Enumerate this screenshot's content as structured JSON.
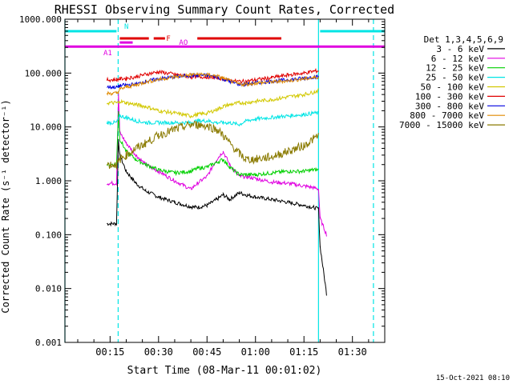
{
  "chart_data": {
    "type": "line",
    "title": "RHESSI Observing Summary Count Rates, Corrected",
    "xlabel": "Start Time (08-Mar-11 00:01:02)",
    "ylabel": "Corrected Count Rate (s⁻¹ detector⁻¹)",
    "y_scale": "log",
    "ylim": [
      0.001,
      1000
    ],
    "xlim_minutes": [
      1.03,
      100
    ],
    "x_tick_labels": [
      "00:15",
      "00:30",
      "00:45",
      "01:00",
      "01:15",
      "01:30"
    ],
    "x_tick_values_minutes": [
      15,
      30,
      45,
      60,
      75,
      90
    ],
    "y_tick_labels": [
      "0.001",
      "0.010",
      "0.100",
      "1.000",
      "10.000",
      "100.000",
      "1000.000"
    ],
    "y_tick_values": [
      0.001,
      0.01,
      0.1,
      1,
      10,
      100,
      1000
    ],
    "legend_title": "Det 1,3,4,5,6,9",
    "legend_position": "right",
    "timestamp": "15-Oct-2021 08:10",
    "flag_bars": [
      {
        "label": "N",
        "color": "#00e5e5",
        "level": 600,
        "segments": [
          [
            1.03,
            17
          ],
          [
            80,
            100
          ]
        ]
      },
      {
        "label": "F",
        "color": "#e00000",
        "level": 440,
        "segments": [
          [
            18,
            27
          ],
          [
            28.5,
            32
          ],
          [
            42,
            68
          ]
        ]
      },
      {
        "label": "AO",
        "color": "#e000e0",
        "level": 370,
        "segments": [
          [
            18,
            22
          ]
        ]
      },
      {
        "label": "A1",
        "color": "#e000e0",
        "level": 310,
        "segments": [
          [
            1.03,
            100
          ]
        ]
      }
    ],
    "vertical_lines": [
      {
        "x_minutes": 1.03,
        "style": "solid",
        "color": "#00e5e5"
      },
      {
        "x_minutes": 17.5,
        "style": "dashed",
        "color": "#00e5e5"
      },
      {
        "x_minutes": 79.5,
        "style": "solid",
        "color": "#00e5e5"
      },
      {
        "x_minutes": 96.5,
        "style": "dashed",
        "color": "#00e5e5"
      }
    ],
    "x_minutes": [
      14,
      17,
      17.6,
      18,
      20,
      23,
      26,
      30,
      35,
      40,
      42,
      45,
      48,
      50,
      52,
      55,
      57,
      60,
      65,
      70,
      75,
      78,
      79.5,
      80,
      82
    ],
    "series": [
      {
        "name": "3 - 6 keV",
        "color": "#000000",
        "values": [
          0.16,
          0.16,
          6,
          3,
          1.5,
          0.9,
          0.65,
          0.5,
          0.4,
          0.33,
          0.32,
          0.35,
          0.45,
          0.55,
          0.45,
          0.6,
          0.55,
          0.5,
          0.45,
          0.4,
          0.35,
          0.32,
          0.3,
          0.06,
          0.008
        ]
      },
      {
        "name": "6 - 12 keV",
        "color": "#e000e0",
        "values": [
          0.9,
          0.9,
          40,
          8,
          5,
          3,
          2,
          1.5,
          1,
          0.7,
          0.9,
          1.2,
          2.5,
          3.5,
          2,
          1.2,
          1.2,
          1.1,
          0.95,
          0.9,
          0.8,
          0.75,
          0.7,
          0.2,
          0.1
        ]
      },
      {
        "name": "12 - 25 keV",
        "color": "#00d000",
        "values": [
          2,
          2,
          20,
          6,
          3.5,
          2.5,
          2,
          1.6,
          1.4,
          1.5,
          1.7,
          1.8,
          2.2,
          2.5,
          1.8,
          1.3,
          1.3,
          1.3,
          1.4,
          1.5,
          1.5,
          1.6,
          1.6,
          null,
          null
        ]
      },
      {
        "name": "25 - 50 keV",
        "color": "#00e5e5",
        "values": [
          12,
          12,
          14,
          16,
          15,
          13,
          12,
          12,
          12,
          12,
          13,
          13,
          12,
          12,
          12,
          11,
          13,
          14,
          15,
          16,
          17,
          18,
          18,
          null,
          null
        ]
      },
      {
        "name": "50 - 100 keV",
        "color": "#d2c800",
        "values": [
          28,
          28,
          28,
          30,
          28,
          26,
          24,
          20,
          18,
          16,
          17,
          18,
          21,
          24,
          26,
          28,
          28,
          30,
          32,
          36,
          40,
          44,
          48,
          null,
          null
        ]
      },
      {
        "name": "100 - 300 keV",
        "color": "#e00000",
        "values": [
          75,
          75,
          78,
          78,
          80,
          85,
          95,
          105,
          95,
          85,
          85,
          85,
          82,
          78,
          72,
          70,
          70,
          75,
          82,
          92,
          100,
          108,
          110,
          null,
          null
        ]
      },
      {
        "name": "300 - 800 keV",
        "color": "#0000e0",
        "values": [
          55,
          55,
          56,
          58,
          60,
          62,
          70,
          78,
          85,
          90,
          92,
          90,
          85,
          78,
          70,
          62,
          62,
          66,
          70,
          75,
          80,
          85,
          85,
          null,
          null
        ]
      },
      {
        "name": "800 - 7000 keV",
        "color": "#e08a00",
        "values": [
          42,
          42,
          45,
          50,
          55,
          60,
          68,
          76,
          85,
          93,
          95,
          93,
          88,
          80,
          72,
          62,
          62,
          65,
          68,
          72,
          78,
          82,
          85,
          null,
          null
        ]
      },
      {
        "name": "7000 - 15000 keV",
        "color": "#8a7a00",
        "values": [
          2,
          2,
          2.2,
          2.5,
          3,
          4,
          5,
          7,
          9,
          11,
          11,
          10.5,
          9,
          7,
          5,
          3.2,
          2.5,
          2.5,
          2.8,
          3.5,
          4.5,
          6,
          7,
          null,
          null
        ]
      }
    ]
  }
}
